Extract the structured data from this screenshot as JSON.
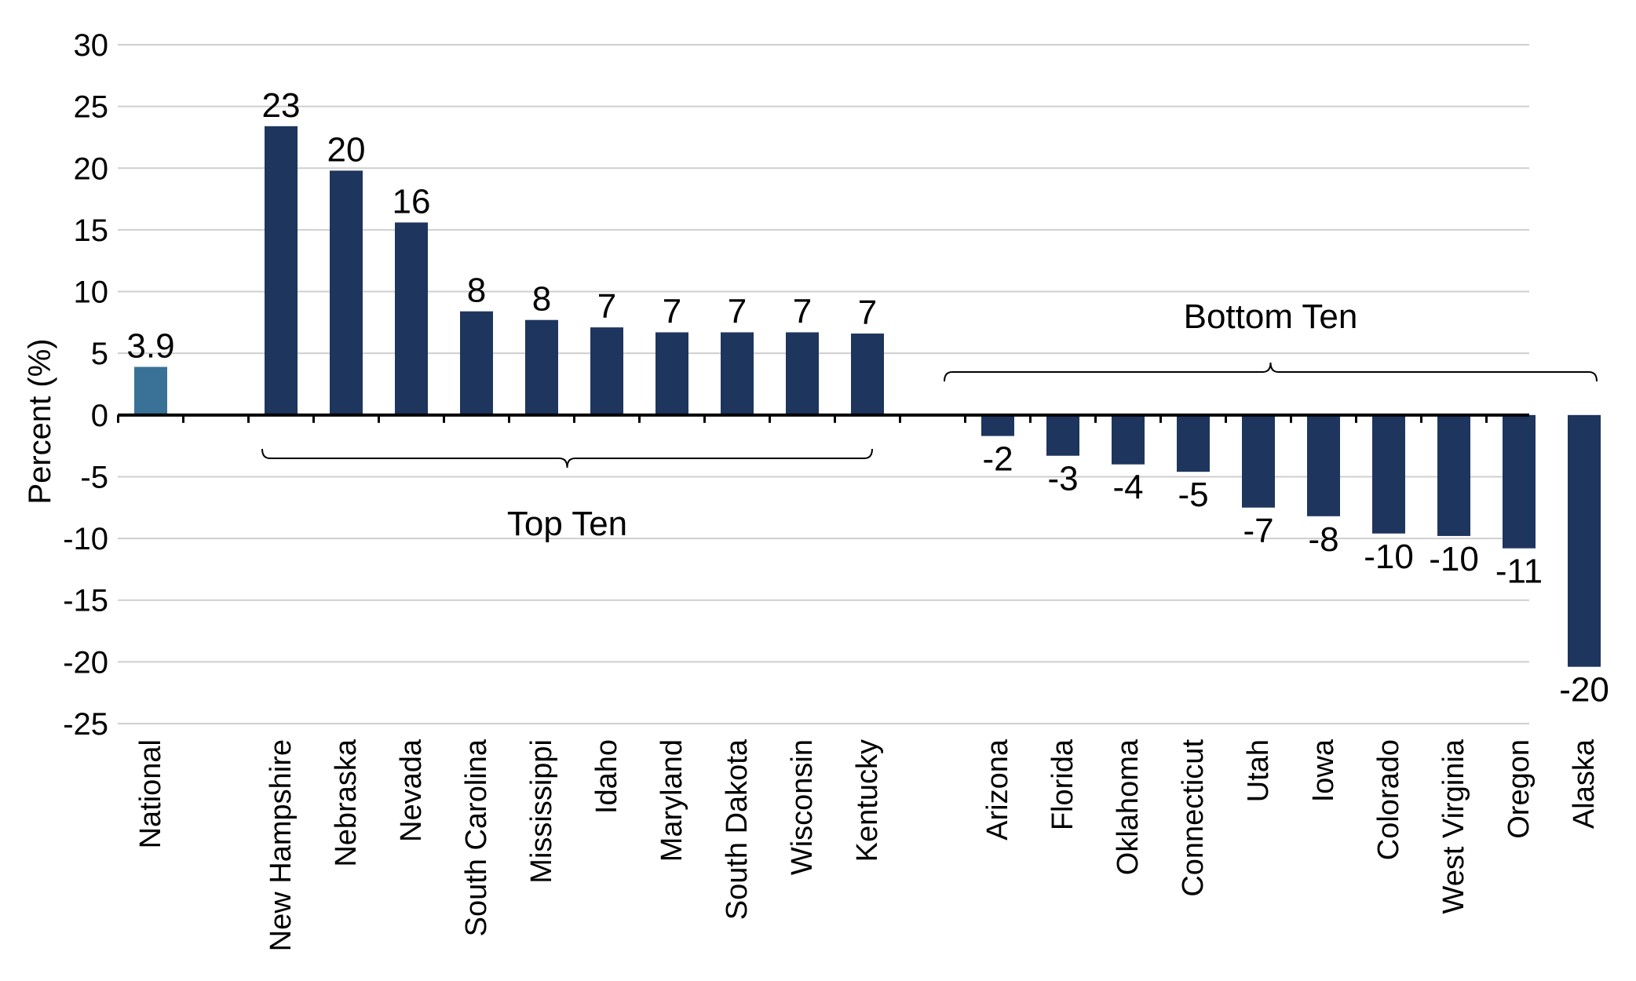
{
  "chart_data": {
    "type": "bar",
    "ylabel": "Percent (%)",
    "ylim": [
      -25,
      30
    ],
    "yticks": [
      30,
      25,
      20,
      15,
      10,
      5,
      0,
      -5,
      -10,
      -15,
      -20,
      -25
    ],
    "grid": true,
    "categories": [
      "National",
      "New Hampshire",
      "Nebraska",
      "Nevada",
      "South Carolina",
      "Mississippi",
      "Idaho",
      "Maryland",
      "South Dakota",
      "Wisconsin",
      "Kentucky",
      "Arizona",
      "Florida",
      "Oklahoma",
      "Connecticut",
      "Utah",
      "Iowa",
      "Colorado",
      "West Virginia",
      "Oregon",
      "Alaska"
    ],
    "slots": [
      0,
      2,
      3,
      4,
      5,
      6,
      7,
      8,
      9,
      10,
      11,
      13,
      14,
      15,
      16,
      17,
      18,
      19,
      20,
      21,
      22
    ],
    "values": [
      3.9,
      23.4,
      19.8,
      15.6,
      8.4,
      7.7,
      7.1,
      6.7,
      6.7,
      6.7,
      6.6,
      -1.7,
      -3.3,
      -4.0,
      -4.6,
      -7.5,
      -8.2,
      -9.6,
      -9.8,
      -10.8,
      -20.4
    ],
    "labels": [
      "3.9",
      "23",
      "20",
      "16",
      "8",
      "8",
      "7",
      "7",
      "7",
      "7",
      "7",
      "-2",
      "-3",
      "-4",
      "-5",
      "-7",
      "-8",
      "-10",
      "-10",
      "-11",
      "-20"
    ],
    "colors": {
      "national": "#3a7196",
      "states": "#1e355e"
    },
    "annotations": [
      {
        "text": "Top Ten",
        "from_index": 1,
        "to_index": 10,
        "side": "below"
      },
      {
        "text": "Bottom Ten",
        "from_index": 11,
        "to_index": 20,
        "side": "above"
      }
    ]
  }
}
